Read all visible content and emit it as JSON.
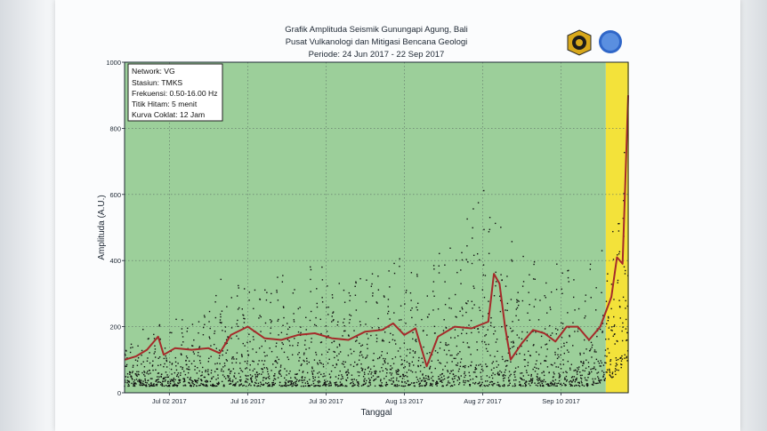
{
  "chart_data": {
    "type": "scatter",
    "title": "Grafik Amplituda Seismik Gunungapi Agung, Bali",
    "subtitle_lines": [
      "Pusat Vulkanologi dan Mitigasi Bencana Geologi",
      "Periode: 24 Jun 2017 - 22 Sep 2017"
    ],
    "xlabel": "Tanggal",
    "ylabel": "Amplituda (A.U.)",
    "xlim": [
      "2017-06-24",
      "2017-09-22"
    ],
    "ylim": [
      0,
      1000
    ],
    "x_ticks": [
      "Jul 02 2017",
      "Jul 16 2017",
      "Jul 30 2017",
      "Aug 13 2017",
      "Aug 27 2017",
      "Sep 10 2017"
    ],
    "x_tick_dates": [
      "2017-07-02",
      "2017-07-16",
      "2017-07-30",
      "2017-08-13",
      "2017-08-27",
      "2017-09-10"
    ],
    "y_ticks": [
      "0",
      "200",
      "400",
      "600",
      "800",
      "1000"
    ],
    "y_tick_values": [
      0,
      200,
      400,
      600,
      800,
      1000
    ],
    "grid": true,
    "legend_position": "top-left",
    "legend_lines": [
      "Network: VG",
      "Stasiun: TMKS",
      "Frekuensi: 0.50-16.00 Hz",
      "Titik Hitam: 5 menit",
      "Kurva Coklat: 12 Jam"
    ],
    "background_bands": [
      {
        "from": "2017-06-24",
        "to": "2017-09-18",
        "color": "#9ccf9a"
      },
      {
        "from": "2017-09-18",
        "to": "2017-09-22",
        "color": "#f3e23a"
      },
      {
        "from": "2017-09-22",
        "to": "2017-09-22",
        "color": "#f2a12e"
      }
    ],
    "series": [
      {
        "marker": "dots",
        "color": "#111111",
        "envelope": [
          {
            "x": "2017-06-24",
            "low": 20,
            "high": 190
          },
          {
            "x": "2017-06-29",
            "low": 20,
            "high": 200
          },
          {
            "x": "2017-07-04",
            "low": 20,
            "high": 230
          },
          {
            "x": "2017-07-09",
            "low": 20,
            "high": 260
          },
          {
            "x": "2017-07-12",
            "low": 20,
            "high": 400
          },
          {
            "x": "2017-07-17",
            "low": 20,
            "high": 410
          },
          {
            "x": "2017-07-23",
            "low": 20,
            "high": 380
          },
          {
            "x": "2017-07-28",
            "low": 20,
            "high": 420
          },
          {
            "x": "2017-08-02",
            "low": 20,
            "high": 370
          },
          {
            "x": "2017-08-07",
            "low": 20,
            "high": 400
          },
          {
            "x": "2017-08-11",
            "low": 20,
            "high": 460
          },
          {
            "x": "2017-08-16",
            "low": 20,
            "high": 360
          },
          {
            "x": "2017-08-20",
            "low": 20,
            "high": 450
          },
          {
            "x": "2017-08-24",
            "low": 20,
            "high": 580
          },
          {
            "x": "2017-08-28",
            "low": 20,
            "high": 650
          },
          {
            "x": "2017-09-01",
            "low": 20,
            "high": 480
          },
          {
            "x": "2017-09-05",
            "low": 20,
            "high": 450
          },
          {
            "x": "2017-09-10",
            "low": 20,
            "high": 400
          },
          {
            "x": "2017-09-15",
            "low": 20,
            "high": 400
          },
          {
            "x": "2017-09-19",
            "low": 40,
            "high": 480
          },
          {
            "x": "2017-09-22",
            "low": 100,
            "high": 850
          }
        ]
      },
      {
        "marker": "line",
        "color": "#a52a2a",
        "points": [
          {
            "x": "2017-06-24",
            "y": 100
          },
          {
            "x": "2017-06-26",
            "y": 110
          },
          {
            "x": "2017-06-28",
            "y": 130
          },
          {
            "x": "2017-06-30",
            "y": 170
          },
          {
            "x": "2017-07-01",
            "y": 115
          },
          {
            "x": "2017-07-03",
            "y": 135
          },
          {
            "x": "2017-07-06",
            "y": 130
          },
          {
            "x": "2017-07-09",
            "y": 135
          },
          {
            "x": "2017-07-11",
            "y": 120
          },
          {
            "x": "2017-07-13",
            "y": 175
          },
          {
            "x": "2017-07-16",
            "y": 200
          },
          {
            "x": "2017-07-19",
            "y": 165
          },
          {
            "x": "2017-07-22",
            "y": 160
          },
          {
            "x": "2017-07-25",
            "y": 175
          },
          {
            "x": "2017-07-28",
            "y": 180
          },
          {
            "x": "2017-07-31",
            "y": 165
          },
          {
            "x": "2017-08-03",
            "y": 160
          },
          {
            "x": "2017-08-06",
            "y": 185
          },
          {
            "x": "2017-08-09",
            "y": 190
          },
          {
            "x": "2017-08-11",
            "y": 210
          },
          {
            "x": "2017-08-13",
            "y": 175
          },
          {
            "x": "2017-08-15",
            "y": 195
          },
          {
            "x": "2017-08-17",
            "y": 80
          },
          {
            "x": "2017-08-19",
            "y": 170
          },
          {
            "x": "2017-08-22",
            "y": 200
          },
          {
            "x": "2017-08-25",
            "y": 195
          },
          {
            "x": "2017-08-28",
            "y": 215
          },
          {
            "x": "2017-08-29",
            "y": 360
          },
          {
            "x": "2017-08-30",
            "y": 330
          },
          {
            "x": "2017-08-31",
            "y": 200
          },
          {
            "x": "2017-09-01",
            "y": 100
          },
          {
            "x": "2017-09-03",
            "y": 150
          },
          {
            "x": "2017-09-05",
            "y": 190
          },
          {
            "x": "2017-09-07",
            "y": 180
          },
          {
            "x": "2017-09-09",
            "y": 155
          },
          {
            "x": "2017-09-11",
            "y": 200
          },
          {
            "x": "2017-09-13",
            "y": 200
          },
          {
            "x": "2017-09-15",
            "y": 160
          },
          {
            "x": "2017-09-17",
            "y": 200
          },
          {
            "x": "2017-09-19",
            "y": 290
          },
          {
            "x": "2017-09-20",
            "y": 410
          },
          {
            "x": "2017-09-21",
            "y": 390
          },
          {
            "x": "2017-09-22",
            "y": 900
          }
        ]
      }
    ]
  }
}
